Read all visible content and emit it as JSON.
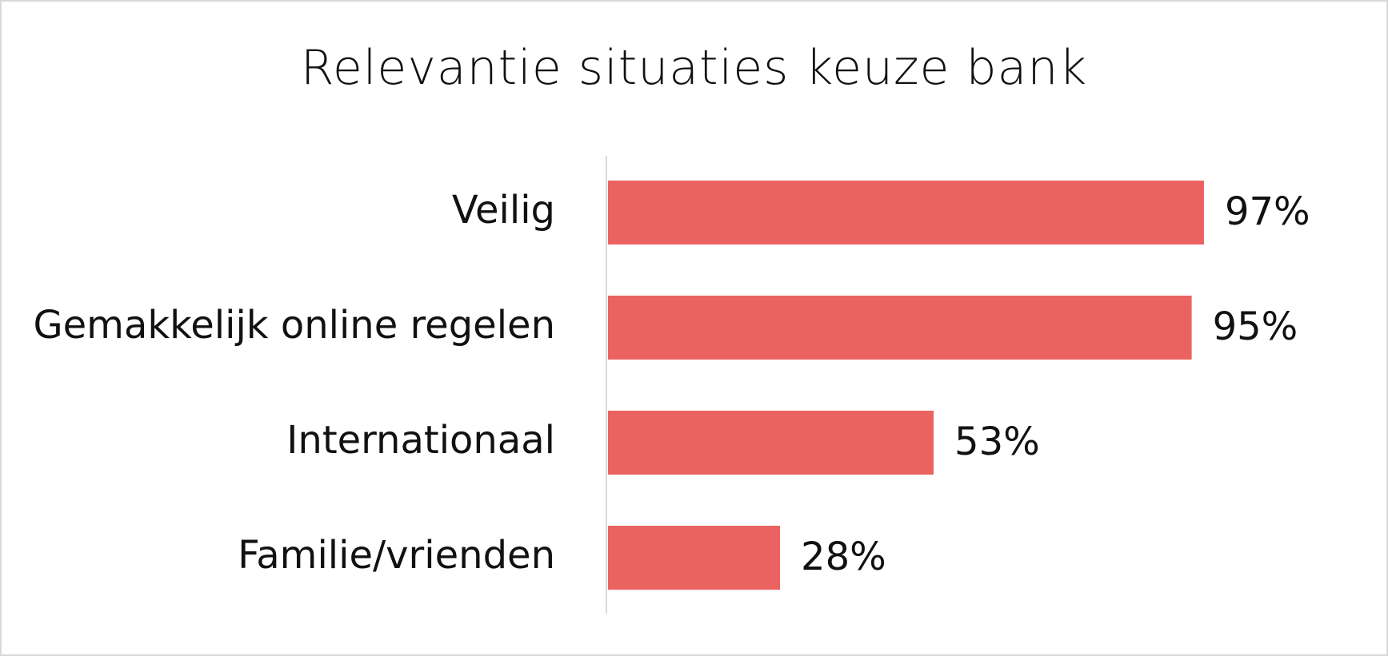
{
  "chart_data": {
    "type": "bar",
    "orientation": "horizontal",
    "title": "Relevantie situaties keuze bank",
    "categories": [
      "Veilig",
      "Gemakkelijk online regelen",
      "Internationaal",
      "Familie/vrienden"
    ],
    "values": [
      97,
      95,
      53,
      28
    ],
    "value_labels": [
      "97%",
      "95%",
      "53%",
      "28%"
    ],
    "unit": "%",
    "xlim": [
      0,
      100
    ],
    "grid": false,
    "legend": "none",
    "colors": {
      "bar": "#EB6361",
      "axis": "#d9d9d9",
      "text": "#111111"
    }
  }
}
